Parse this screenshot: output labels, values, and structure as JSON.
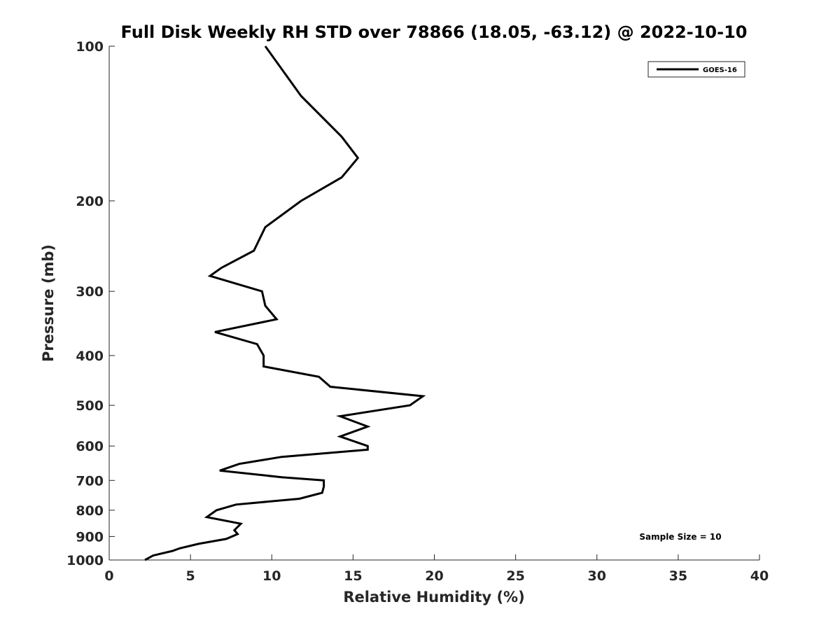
{
  "chart_data": {
    "type": "line",
    "title": "Full Disk Weekly RH STD over 78866 (18.05, -63.12) @ 2022-10-10",
    "xlabel": "Relative Humidity (%)",
    "ylabel": "Pressure (mb)",
    "xlim": [
      0,
      40
    ],
    "ylim": [
      100,
      1000
    ],
    "y_scale": "log",
    "y_reversed": true,
    "x_ticks": [
      0,
      5,
      10,
      15,
      20,
      25,
      30,
      35,
      40
    ],
    "y_ticks": [
      100,
      200,
      300,
      400,
      500,
      600,
      700,
      800,
      900,
      1000
    ],
    "grid": false,
    "legend": {
      "placement": "top-right",
      "entries": [
        "GOES-16"
      ]
    },
    "annotation": "Sample Size = 10",
    "series": [
      {
        "name": "GOES-16",
        "color": "#000000",
        "points": [
          [
            9.6,
            100
          ],
          [
            11.8,
            125
          ],
          [
            14.3,
            150
          ],
          [
            15.3,
            165
          ],
          [
            14.3,
            180
          ],
          [
            11.8,
            200
          ],
          [
            9.6,
            225
          ],
          [
            8.9,
            250
          ],
          [
            6.9,
            270
          ],
          [
            6.2,
            280
          ],
          [
            9.4,
            300
          ],
          [
            9.6,
            320
          ],
          [
            10.3,
            340
          ],
          [
            6.5,
            360
          ],
          [
            9.1,
            380
          ],
          [
            9.5,
            400
          ],
          [
            9.5,
            420
          ],
          [
            12.9,
            440
          ],
          [
            13.6,
            460
          ],
          [
            19.3,
            480
          ],
          [
            18.5,
            500
          ],
          [
            14.2,
            525
          ],
          [
            15.9,
            550
          ],
          [
            14.2,
            575
          ],
          [
            15.9,
            600
          ],
          [
            15.9,
            610
          ],
          [
            10.6,
            630
          ],
          [
            8.0,
            650
          ],
          [
            6.8,
            670
          ],
          [
            10.6,
            690
          ],
          [
            13.2,
            700
          ],
          [
            13.2,
            720
          ],
          [
            13.1,
            740
          ],
          [
            11.7,
            760
          ],
          [
            7.8,
            780
          ],
          [
            6.6,
            800
          ],
          [
            6.0,
            825
          ],
          [
            8.1,
            850
          ],
          [
            7.7,
            875
          ],
          [
            7.9,
            890
          ],
          [
            7.2,
            910
          ],
          [
            5.5,
            930
          ],
          [
            4.3,
            950
          ],
          [
            3.9,
            960
          ],
          [
            2.7,
            980
          ],
          [
            2.2,
            1000
          ]
        ]
      }
    ]
  }
}
